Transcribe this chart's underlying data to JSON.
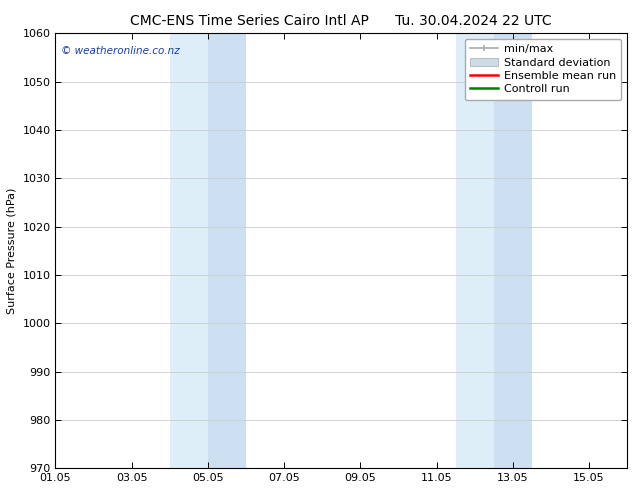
{
  "title_left": "CMC-ENS Time Series Cairo Intl AP",
  "title_right": "Tu. 30.04.2024 22 UTC",
  "ylabel": "Surface Pressure (hPa)",
  "xlabel": "",
  "ylim": [
    970,
    1060
  ],
  "yticks": [
    970,
    980,
    990,
    1000,
    1010,
    1020,
    1030,
    1040,
    1050,
    1060
  ],
  "xlim_start": 0.0,
  "xlim_end": 15.0,
  "xtick_labels": [
    "01.05",
    "03.05",
    "05.05",
    "07.05",
    "09.05",
    "11.05",
    "13.05",
    "15.05"
  ],
  "xtick_positions": [
    0,
    2,
    4,
    6,
    8,
    10,
    12,
    14
  ],
  "shaded_bands": [
    {
      "x_start": 3.0,
      "x_end": 4.0,
      "color": "#ddeef8"
    },
    {
      "x_start": 4.0,
      "x_end": 5.0,
      "color": "#cce0f2"
    },
    {
      "x_start": 10.5,
      "x_end": 11.5,
      "color": "#ddeef8"
    },
    {
      "x_start": 11.5,
      "x_end": 12.5,
      "color": "#cce0f2"
    }
  ],
  "watermark_text": "© weatheronline.co.nz",
  "watermark_color": "#1a3fa0",
  "legend_entries": [
    {
      "label": "min/max",
      "color": "#aaaaaa",
      "style": "line_with_caps"
    },
    {
      "label": "Standard deviation",
      "color": "#ccdde8",
      "style": "filled_box"
    },
    {
      "label": "Ensemble mean run",
      "color": "#ff0000",
      "style": "line"
    },
    {
      "label": "Controll run",
      "color": "#008000",
      "style": "line"
    }
  ],
  "bg_color": "#ffffff",
  "plot_bg_color": "#ffffff",
  "grid_color": "#cccccc",
  "title_fontsize": 10,
  "tick_fontsize": 8,
  "legend_fontsize": 8
}
